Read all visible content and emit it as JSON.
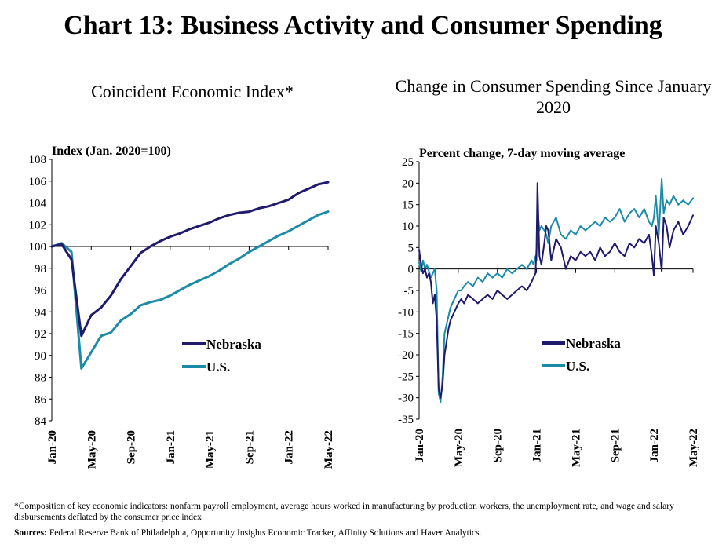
{
  "page": {
    "title": "Chart 13: Business Activity and Consumer Spending",
    "footnote": "*Composition of key economic indicators: nonfarm payroll employment, average hours worked in manufacturing by production workers, the unemployment rate, and wage and salary disbursements deflated by the consumer price index",
    "sources_label": "Sources:",
    "sources_text": "Federal Reserve Bank of Philadelphia, Opportunity Insights Economic Tracker, Affinity Solutions and Haver Analytics."
  },
  "colors": {
    "nebraska": "#1f1a6b",
    "us": "#1b8ba8",
    "axis": "#000000"
  },
  "chart_data": [
    {
      "type": "line",
      "title": "Coincident Economic Index*",
      "ylabel": "Index (Jan. 2020=100)",
      "ylim": [
        84,
        108
      ],
      "yticks": [
        "84",
        "86",
        "88",
        "90",
        "92",
        "94",
        "96",
        "98",
        "100",
        "102",
        "104",
        "106",
        "108"
      ],
      "xticks": [
        "Jan-20",
        "May-20",
        "Sep-20",
        "Jan-21",
        "May-21",
        "Sep-21",
        "Jan-22",
        "May-22"
      ],
      "x": [
        0,
        1,
        2,
        3,
        4,
        5,
        6,
        7,
        8,
        9,
        10,
        11,
        12,
        13,
        14,
        15,
        16,
        17,
        18,
        19,
        20,
        21,
        22,
        23,
        24,
        25,
        26,
        27,
        28
      ],
      "series": [
        {
          "name": "Nebraska",
          "values": [
            100,
            100.2,
            98.8,
            91.8,
            93.7,
            94.4,
            95.5,
            97.0,
            98.2,
            99.4,
            100.0,
            100.5,
            100.9,
            101.2,
            101.6,
            101.9,
            102.2,
            102.6,
            102.9,
            103.1,
            103.2,
            103.5,
            103.7,
            104.0,
            104.3,
            104.9,
            105.3,
            105.7,
            105.9
          ]
        },
        {
          "name": "U.S.",
          "values": [
            100,
            100.3,
            99.5,
            88.8,
            90.3,
            91.8,
            92.1,
            93.2,
            93.8,
            94.6,
            94.9,
            95.1,
            95.5,
            96.0,
            96.5,
            96.9,
            97.3,
            97.8,
            98.4,
            98.9,
            99.5,
            100.0,
            100.5,
            101.0,
            101.4,
            101.9,
            102.4,
            102.9,
            103.2
          ]
        }
      ],
      "legend": [
        "Nebraska",
        "U.S."
      ]
    },
    {
      "type": "line",
      "title": "Change in Consumer Spending Since January 2020",
      "ylabel": "Percent change, 7-day moving average",
      "ylim": [
        -35,
        25
      ],
      "yticks": [
        "-35",
        "-30",
        "-25",
        "-20",
        "-15",
        "-10",
        "-5",
        "0",
        "5",
        "10",
        "15",
        "20",
        "25"
      ],
      "xticks": [
        "Jan-20",
        "May-20",
        "Sep-20",
        "Jan-21",
        "May-21",
        "Sep-21",
        "Jan-22",
        "May-22"
      ],
      "x": [
        0,
        0.2,
        0.4,
        0.6,
        0.8,
        1,
        1.2,
        1.4,
        1.6,
        1.8,
        2,
        2.2,
        2.4,
        2.6,
        2.8,
        3,
        3.2,
        3.4,
        3.6,
        3.8,
        4,
        4.3,
        4.6,
        5,
        5.5,
        6,
        6.5,
        7,
        7.5,
        8,
        8.5,
        9,
        9.5,
        10,
        10.5,
        11,
        11.5,
        11.7,
        11.9,
        12,
        12.1,
        12.3,
        12.5,
        12.8,
        13,
        13.2,
        13.5,
        14,
        14.5,
        15,
        15.5,
        16,
        16.5,
        17,
        17.5,
        18,
        18.5,
        19,
        19.5,
        20,
        20.5,
        21,
        21.5,
        22,
        22.5,
        23,
        23.5,
        23.8,
        24,
        24.2,
        24.5,
        24.8,
        25,
        25.3,
        25.6,
        26,
        26.5,
        27,
        27.5,
        28
      ],
      "series": [
        {
          "name": "Nebraska",
          "values": [
            4.5,
            1,
            -1,
            0,
            -2,
            -1,
            -3,
            -8,
            -6,
            -12,
            -28,
            -30,
            -27,
            -20,
            -17,
            -14,
            -12,
            -11,
            -10,
            -9,
            -8,
            -7,
            -8,
            -6,
            -7,
            -8,
            -7,
            -6,
            -7,
            -5,
            -6,
            -7,
            -6,
            -5,
            -4,
            -5,
            -3,
            -2,
            -1,
            5,
            20,
            3,
            1,
            6,
            10,
            9,
            2,
            7,
            5,
            0,
            3,
            2,
            4,
            3,
            4,
            2,
            5,
            3,
            4,
            6,
            4,
            3,
            6,
            5,
            7,
            6,
            8,
            3,
            -1.5,
            10,
            6,
            -0.5,
            12,
            10,
            5,
            9,
            11,
            8,
            10,
            12.5
          ]
        },
        {
          "name": "U.S.",
          "values": [
            1.5,
            -0.5,
            2,
            0,
            1,
            -0.5,
            -2,
            -1,
            0,
            -5,
            -29,
            -31,
            -25,
            -15,
            -13,
            -11,
            -9,
            -8,
            -7,
            -6,
            -5,
            -5,
            -4,
            -3,
            -4,
            -2,
            -3,
            -1,
            -2,
            -1,
            -2,
            0,
            -1,
            0,
            1,
            0,
            2,
            1,
            3,
            2,
            14,
            9,
            10,
            9,
            8,
            6,
            10,
            12,
            8,
            7,
            9,
            8,
            10,
            9,
            10,
            11,
            10,
            12,
            11,
            12,
            14,
            11,
            13,
            14,
            12,
            14,
            11,
            10,
            12,
            17,
            8,
            21,
            13,
            16,
            15,
            17,
            15,
            16,
            15,
            16.5
          ]
        }
      ],
      "legend": [
        "Nebraska",
        "U.S."
      ]
    }
  ]
}
